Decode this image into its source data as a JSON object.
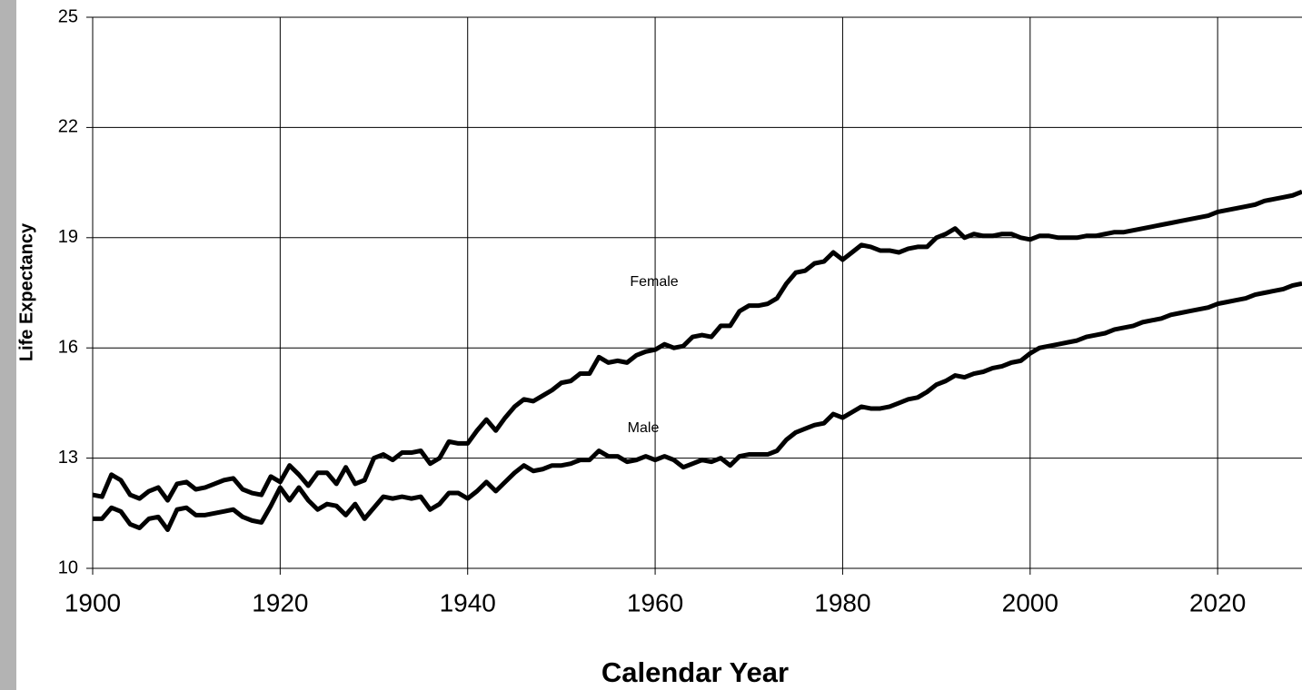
{
  "chart_data": {
    "type": "line",
    "xlabel": "Calendar Year",
    "ylabel": "Life Expectancy",
    "annotations": [
      "Female",
      "Male"
    ],
    "x": [
      1900,
      1901,
      1902,
      1903,
      1904,
      1905,
      1906,
      1907,
      1908,
      1909,
      1910,
      1911,
      1912,
      1913,
      1914,
      1915,
      1916,
      1917,
      1918,
      1919,
      1920,
      1921,
      1922,
      1923,
      1924,
      1925,
      1926,
      1927,
      1928,
      1929,
      1930,
      1931,
      1932,
      1933,
      1934,
      1935,
      1936,
      1937,
      1938,
      1939,
      1940,
      1941,
      1942,
      1943,
      1944,
      1945,
      1946,
      1947,
      1948,
      1949,
      1950,
      1951,
      1952,
      1953,
      1954,
      1955,
      1956,
      1957,
      1958,
      1959,
      1960,
      1961,
      1962,
      1963,
      1964,
      1965,
      1966,
      1967,
      1968,
      1969,
      1970,
      1971,
      1972,
      1973,
      1974,
      1975,
      1976,
      1977,
      1978,
      1979,
      1980,
      1981,
      1982,
      1983,
      1984,
      1985,
      1986,
      1987,
      1988,
      1989,
      1990,
      1991,
      1992,
      1993,
      1994,
      1995,
      1996,
      1997,
      1998,
      1999,
      2000,
      2001,
      2002,
      2003,
      2004,
      2005,
      2006,
      2007,
      2008,
      2009,
      2010,
      2011,
      2012,
      2013,
      2014,
      2015,
      2016,
      2017,
      2018,
      2019,
      2020,
      2021,
      2022,
      2023,
      2024,
      2025,
      2026,
      2027,
      2028,
      2029
    ],
    "series": [
      {
        "name": "Female",
        "color": "#000000",
        "values": [
          12.0,
          11.95,
          12.55,
          12.4,
          12.0,
          11.9,
          12.1,
          12.2,
          11.85,
          12.3,
          12.35,
          12.15,
          12.2,
          12.3,
          12.4,
          12.45,
          12.15,
          12.05,
          12.0,
          12.5,
          12.35,
          12.8,
          12.55,
          12.25,
          12.6,
          12.6,
          12.3,
          12.75,
          12.3,
          12.4,
          13.0,
          13.1,
          12.95,
          13.15,
          13.15,
          13.2,
          12.85,
          13.0,
          13.45,
          13.4,
          13.4,
          13.75,
          14.05,
          13.75,
          14.1,
          14.4,
          14.6,
          14.55,
          14.7,
          14.85,
          15.05,
          15.1,
          15.3,
          15.3,
          15.75,
          15.6,
          15.65,
          15.6,
          15.8,
          15.9,
          15.95,
          16.1,
          16.0,
          16.05,
          16.3,
          16.35,
          16.3,
          16.6,
          16.6,
          17.0,
          17.15,
          17.15,
          17.2,
          17.35,
          17.75,
          18.05,
          18.1,
          18.3,
          18.35,
          18.6,
          18.4,
          18.6,
          18.8,
          18.75,
          18.65,
          18.65,
          18.6,
          18.7,
          18.75,
          18.75,
          19.0,
          19.1,
          19.25,
          19.0,
          19.1,
          19.05,
          19.05,
          19.1,
          19.1,
          19.0,
          18.95,
          19.05,
          19.05,
          19.0,
          19.0,
          19.0,
          19.05,
          19.05,
          19.1,
          19.15,
          19.15,
          19.2,
          19.25,
          19.3,
          19.35,
          19.4,
          19.45,
          19.5,
          19.55,
          19.6,
          19.7,
          19.75,
          19.8,
          19.85,
          19.9,
          20.0,
          20.05,
          20.1,
          20.15,
          20.25
        ]
      },
      {
        "name": "Male",
        "color": "#000000",
        "values": [
          11.35,
          11.35,
          11.65,
          11.55,
          11.2,
          11.1,
          11.35,
          11.4,
          11.05,
          11.6,
          11.65,
          11.45,
          11.45,
          11.5,
          11.55,
          11.6,
          11.4,
          11.3,
          11.25,
          11.7,
          12.2,
          11.85,
          12.2,
          11.85,
          11.6,
          11.75,
          11.7,
          11.45,
          11.75,
          11.35,
          11.65,
          11.95,
          11.9,
          11.95,
          11.9,
          11.95,
          11.6,
          11.75,
          12.05,
          12.05,
          11.9,
          12.1,
          12.35,
          12.1,
          12.35,
          12.6,
          12.8,
          12.65,
          12.7,
          12.8,
          12.8,
          12.85,
          12.95,
          12.95,
          13.2,
          13.05,
          13.05,
          12.9,
          12.95,
          13.05,
          12.95,
          13.05,
          12.95,
          12.75,
          12.85,
          12.95,
          12.9,
          13.0,
          12.8,
          13.05,
          13.1,
          13.1,
          13.1,
          13.2,
          13.5,
          13.7,
          13.8,
          13.9,
          13.95,
          14.2,
          14.1,
          14.25,
          14.4,
          14.35,
          14.35,
          14.4,
          14.5,
          14.6,
          14.65,
          14.8,
          15.0,
          15.1,
          15.25,
          15.2,
          15.3,
          15.35,
          15.45,
          15.5,
          15.6,
          15.65,
          15.85,
          16.0,
          16.05,
          16.1,
          16.15,
          16.2,
          16.3,
          16.35,
          16.4,
          16.5,
          16.55,
          16.6,
          16.7,
          16.75,
          16.8,
          16.9,
          16.95,
          17.0,
          17.05,
          17.1,
          17.2,
          17.25,
          17.3,
          17.35,
          17.45,
          17.5,
          17.55,
          17.6,
          17.7,
          17.75
        ]
      }
    ],
    "xlim": [
      1900,
      2029
    ],
    "xticks": [
      1900,
      1920,
      1940,
      1960,
      1980,
      2000,
      2020
    ],
    "ylim": [
      10,
      25
    ],
    "yticks": [
      10,
      13,
      16,
      19,
      22,
      25
    ],
    "grid": true
  }
}
